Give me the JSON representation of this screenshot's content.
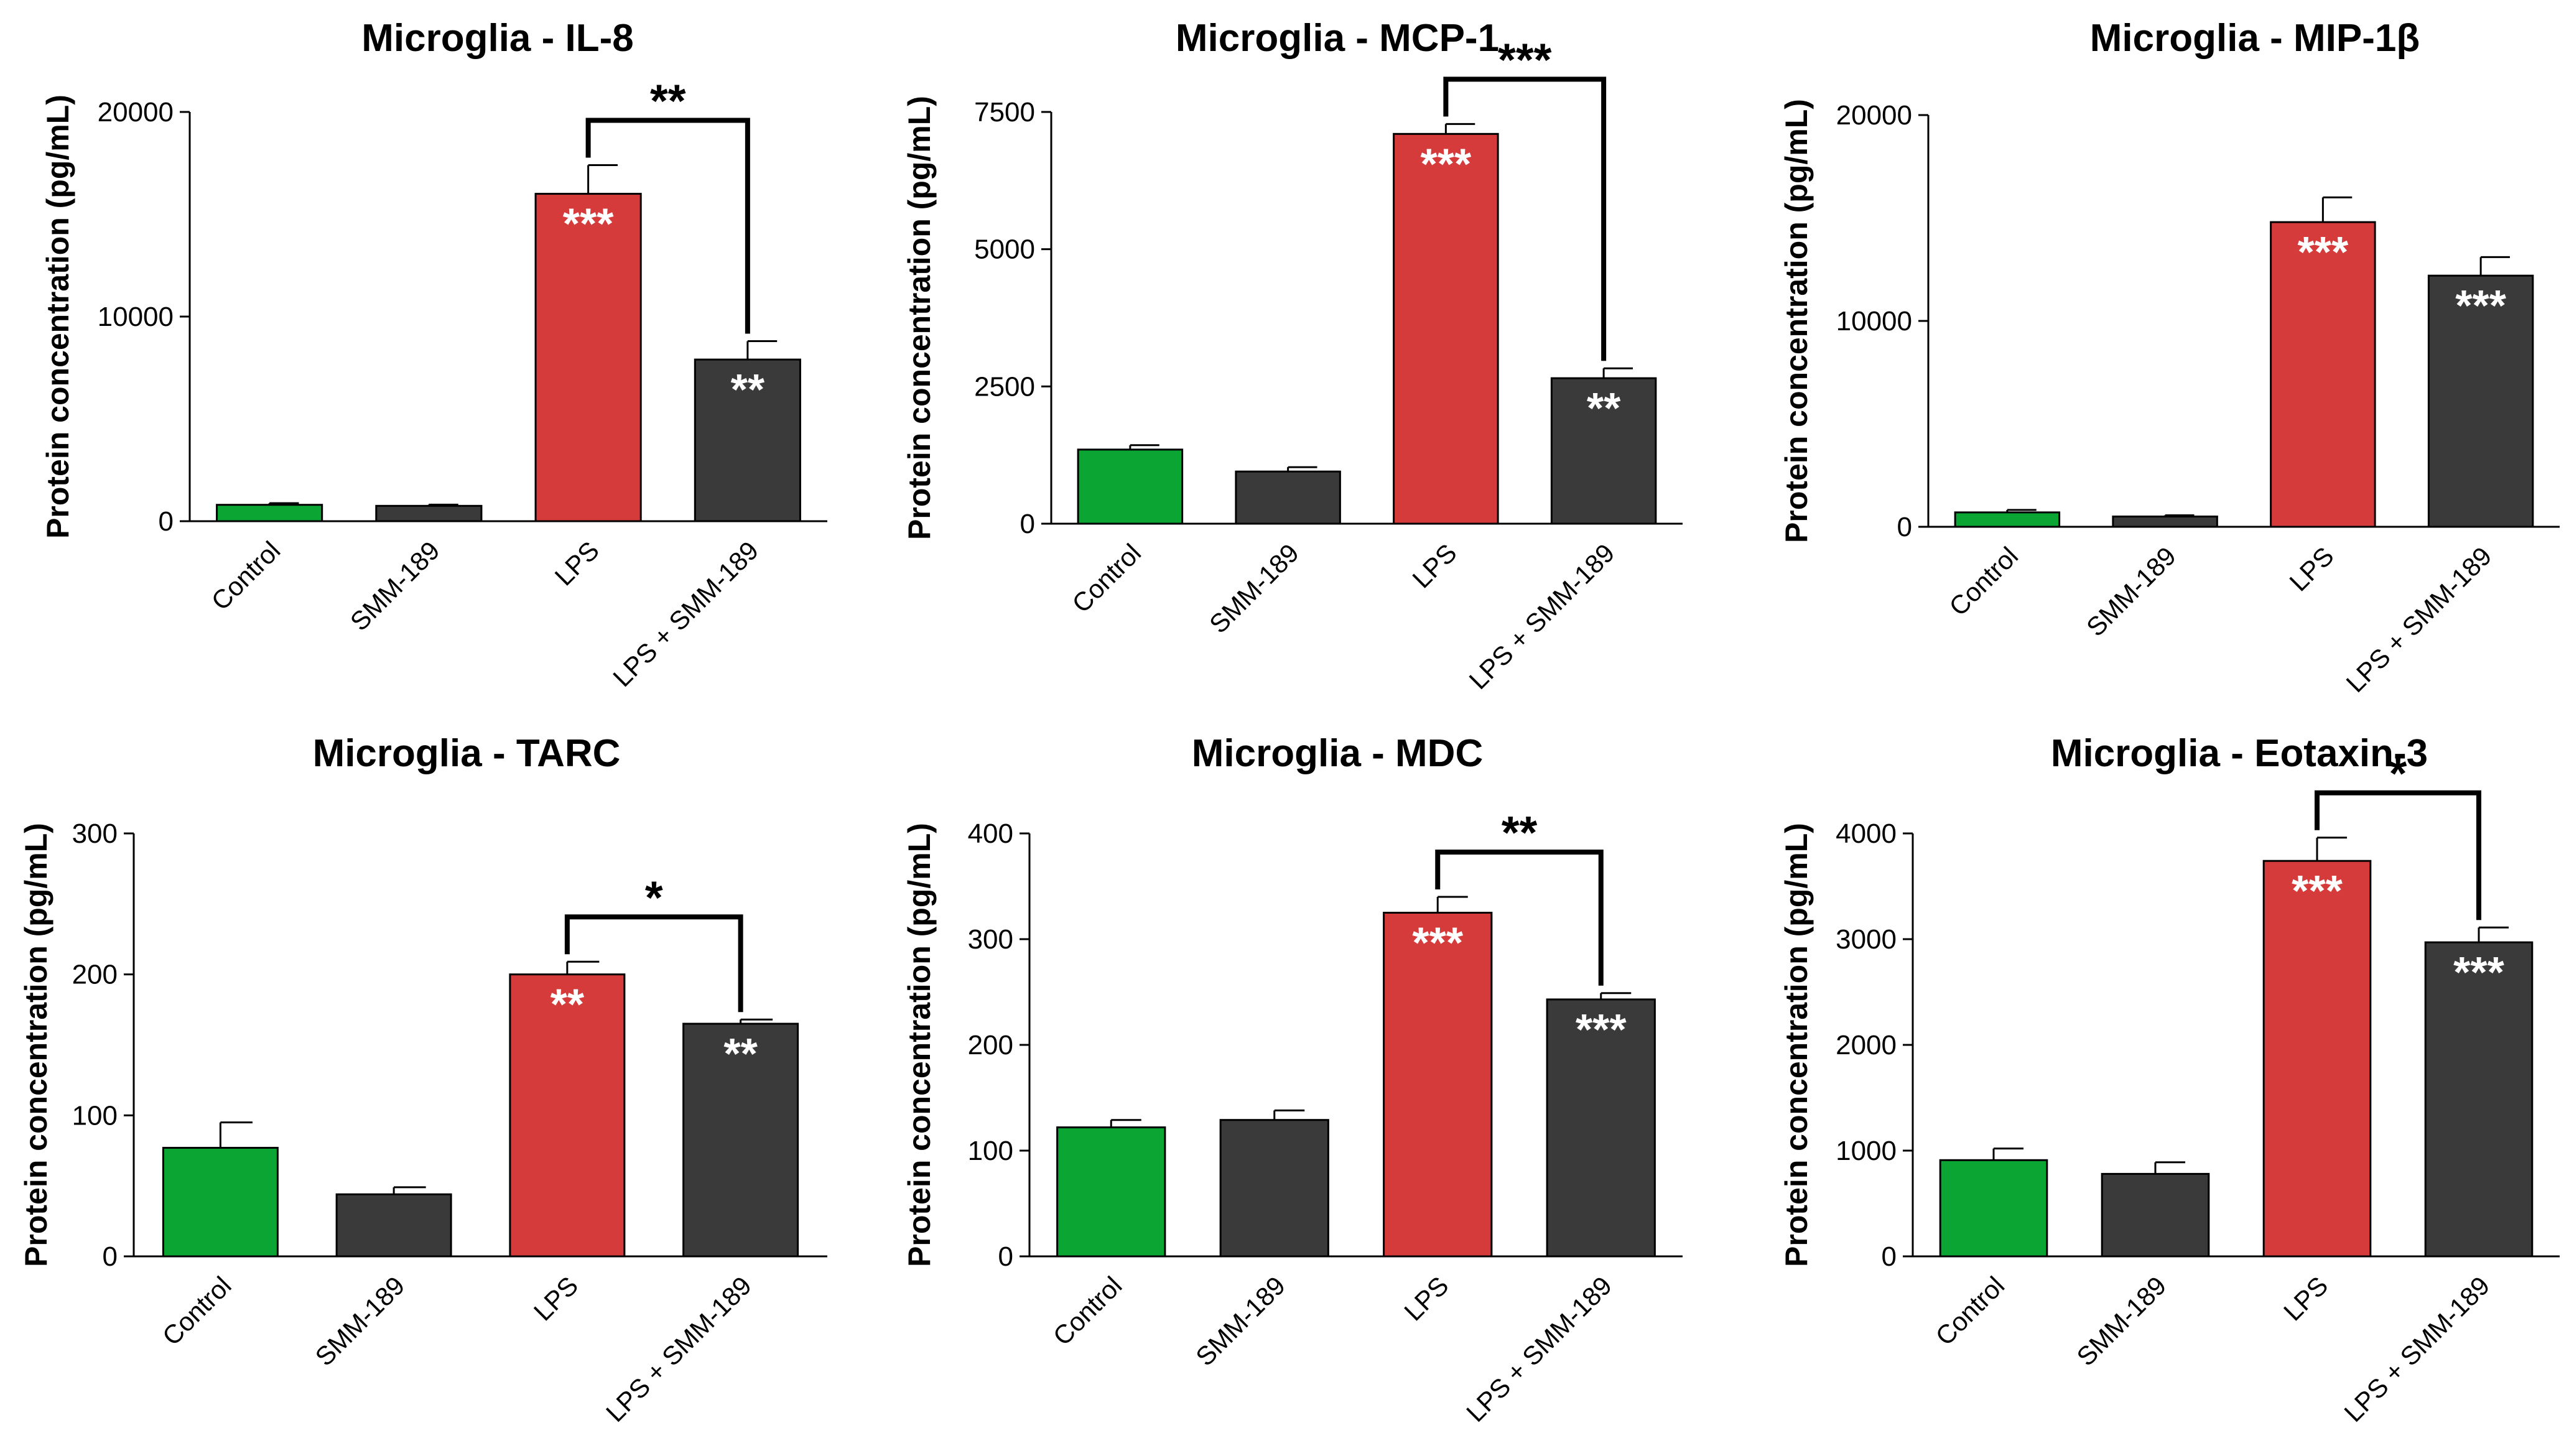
{
  "colors": {
    "control": "#0aa532",
    "smm": "#3a3a3a",
    "lps": "#d63b3b",
    "combo": "#3a3a3a"
  },
  "chart_data": [
    {
      "type": "bar",
      "title": "Microglia - IL-8",
      "ylabel": "Protein concentration  (pg/mL)",
      "categories": [
        "Control",
        "SMM-189",
        "LPS",
        "LPS + SMM-189"
      ],
      "values": [
        800,
        750,
        16000,
        7900
      ],
      "errors": [
        80,
        60,
        1400,
        900
      ],
      "ylim": [
        0,
        20000
      ],
      "yticks": [
        0,
        10000,
        20000
      ],
      "bar_significance": [
        "",
        "",
        "***",
        "**"
      ],
      "bracket": {
        "from": "LPS",
        "to": "LPS + SMM-189",
        "label": "**"
      }
    },
    {
      "type": "bar",
      "title": "Microglia - MCP-1",
      "ylabel": "Protein concentration  (pg/mL)",
      "categories": [
        "Control",
        "SMM-189",
        "LPS",
        "LPS + SMM-189"
      ],
      "values": [
        1350,
        950,
        7100,
        2650
      ],
      "errors": [
        80,
        80,
        180,
        180
      ],
      "ylim": [
        0,
        7500
      ],
      "yticks": [
        0,
        2500,
        5000,
        7500
      ],
      "bar_significance": [
        "",
        "",
        "***",
        "**"
      ],
      "bracket": {
        "from": "LPS",
        "to": "LPS + SMM-189",
        "label": "***"
      }
    },
    {
      "type": "bar",
      "title": "Microglia - MIP-1β",
      "ylabel": "Protein concentration  (pg/mL)",
      "categories": [
        "Control",
        "SMM-189",
        "LPS",
        "LPS + SMM-189"
      ],
      "values": [
        700,
        500,
        14800,
        12200
      ],
      "errors": [
        120,
        60,
        1200,
        900
      ],
      "ylim": [
        0,
        20000
      ],
      "yticks": [
        0,
        10000,
        20000
      ],
      "bar_significance": [
        "",
        "",
        "***",
        "***"
      ],
      "bracket": null
    },
    {
      "type": "bar",
      "title": "Microglia - TARC",
      "ylabel": "Protein concentration  (pg/mL)",
      "categories": [
        "Control",
        "SMM-189",
        "LPS",
        "LPS + SMM-189"
      ],
      "values": [
        77,
        44,
        200,
        165
      ],
      "errors": [
        18,
        5,
        9,
        3
      ],
      "ylim": [
        0,
        300
      ],
      "yticks": [
        0,
        100,
        200,
        300
      ],
      "bar_significance": [
        "",
        "",
        "**",
        "**"
      ],
      "bracket": {
        "from": "LPS",
        "to": "LPS + SMM-189",
        "label": "*"
      }
    },
    {
      "type": "bar",
      "title": "Microglia - MDC",
      "ylabel": "Protein concentration  (pg/mL)",
      "categories": [
        "Control",
        "SMM-189",
        "LPS",
        "LPS + SMM-189"
      ],
      "values": [
        122,
        129,
        325,
        243
      ],
      "errors": [
        7,
        9,
        15,
        6
      ],
      "ylim": [
        0,
        400
      ],
      "yticks": [
        0,
        100,
        200,
        300,
        400
      ],
      "bar_significance": [
        "",
        "",
        "***",
        "***"
      ],
      "bracket": {
        "from": "LPS",
        "to": "LPS + SMM-189",
        "label": "**"
      }
    },
    {
      "type": "bar",
      "title": "Microglia - Eotaxin-3",
      "ylabel": "Protein concentration  (pg/mL)",
      "categories": [
        "Control",
        "SMM-189",
        "LPS",
        "LPS + SMM-189"
      ],
      "values": [
        910,
        780,
        3740,
        2970
      ],
      "errors": [
        110,
        110,
        220,
        140
      ],
      "ylim": [
        0,
        4000
      ],
      "yticks": [
        0,
        1000,
        2000,
        3000,
        4000
      ],
      "bar_significance": [
        "",
        "",
        "***",
        "***"
      ],
      "bracket": {
        "from": "LPS",
        "to": "LPS + SMM-189",
        "label": "*"
      }
    }
  ]
}
